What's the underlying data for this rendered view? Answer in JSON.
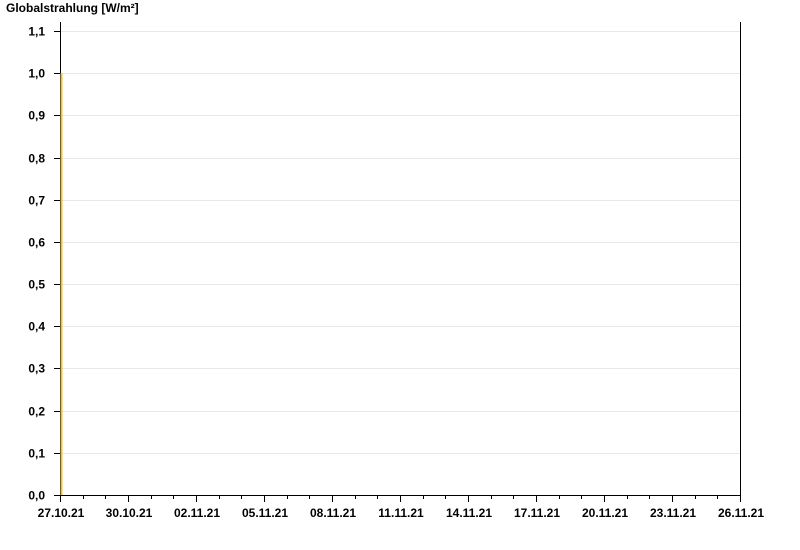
{
  "chart_data": {
    "type": "line",
    "title": "",
    "ylabel": "Globalstrahlung [W/m²]",
    "xlabel": "",
    "x_start": "27.10.21",
    "x_end": "26.11.21",
    "x_tick_labels": [
      "27.10.21",
      "30.10.21",
      "02.11.21",
      "05.11.21",
      "08.11.21",
      "11.11.21",
      "14.11.21",
      "17.11.21",
      "20.11.21",
      "23.11.21",
      "26.11.21"
    ],
    "x_minor_tick_interval_days": 1,
    "x_label_interval_days": 3,
    "ylim": [
      0,
      1.1
    ],
    "y_tick_labels": [
      "0,0",
      "0,1",
      "0,2",
      "0,3",
      "0,4",
      "0,5",
      "0,6",
      "0,7",
      "0,8",
      "0,9",
      "1,0",
      "1,1"
    ],
    "grid": true,
    "series": [
      {
        "color": "#f0c040",
        "x": [
          "27.10.21",
          "27.10.21"
        ],
        "y": [
          0,
          1.0
        ]
      }
    ]
  }
}
